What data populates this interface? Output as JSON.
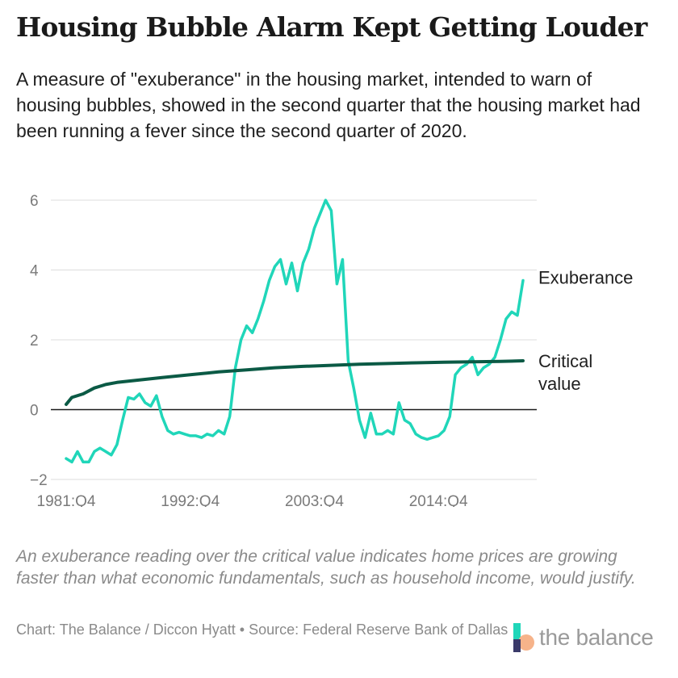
{
  "header": {
    "title": "Housing Bubble Alarm Kept Getting Louder",
    "subtitle": "A measure of \"exuberance\" in the housing market, intended to warn of housing bubbles, showed in the second quarter that the housing market had been running a fever since the second quarter of 2020."
  },
  "footer": {
    "note": "An exuberance reading over the critical value indicates home prices are growing faster than what economic fundamentals, such as household income, would justify.",
    "credit": "Chart: The Balance / Diccon Hyatt • Source: Federal Reserve Bank of Dallas",
    "logo_text": "the balance"
  },
  "colors": {
    "exuberance": "#20d6b9",
    "critical": "#0b5a45",
    "grid": "#dcdcdc",
    "zero_line": "#1a1a1a"
  },
  "chart_data": {
    "type": "line",
    "title": "Housing Bubble Alarm Kept Getting Louder",
    "xlabel": "",
    "ylabel": "",
    "ylim": [
      -2,
      6
    ],
    "y_ticks": [
      -2,
      0,
      2,
      4,
      6
    ],
    "y_tick_labels": [
      "−2",
      "0",
      "2",
      "4",
      "6"
    ],
    "x_ticks": [
      "1981:Q4",
      "1992:Q4",
      "2003:Q4",
      "2014:Q4"
    ],
    "xlim": [
      "1981:Q4",
      "2022:Q2"
    ],
    "grid": true,
    "legend": "direct labels at right end of lines",
    "series": [
      {
        "name": "Exuberance",
        "x": [
          "1981:Q4",
          "1982:Q2",
          "1982:Q4",
          "1983:Q2",
          "1983:Q4",
          "1984:Q2",
          "1984:Q4",
          "1985:Q2",
          "1985:Q4",
          "1986:Q2",
          "1986:Q4",
          "1987:Q2",
          "1987:Q4",
          "1988:Q2",
          "1988:Q4",
          "1989:Q2",
          "1989:Q4",
          "1990:Q2",
          "1990:Q4",
          "1991:Q2",
          "1991:Q4",
          "1992:Q2",
          "1992:Q4",
          "1993:Q2",
          "1993:Q4",
          "1994:Q2",
          "1994:Q4",
          "1995:Q2",
          "1995:Q4",
          "1996:Q2",
          "1996:Q4",
          "1997:Q2",
          "1997:Q4",
          "1998:Q2",
          "1998:Q4",
          "1999:Q2",
          "1999:Q4",
          "2000:Q2",
          "2000:Q4",
          "2001:Q2",
          "2001:Q4",
          "2002:Q2",
          "2002:Q4",
          "2003:Q2",
          "2003:Q4",
          "2004:Q2",
          "2004:Q4",
          "2005:Q2",
          "2005:Q4",
          "2006:Q2",
          "2006:Q4",
          "2007:Q2",
          "2007:Q4",
          "2008:Q2",
          "2008:Q4",
          "2009:Q2",
          "2009:Q4",
          "2010:Q2",
          "2010:Q4",
          "2011:Q2",
          "2011:Q4",
          "2012:Q2",
          "2012:Q4",
          "2013:Q2",
          "2013:Q4",
          "2014:Q2",
          "2014:Q4",
          "2015:Q2",
          "2015:Q4",
          "2016:Q2",
          "2016:Q4",
          "2017:Q2",
          "2017:Q4",
          "2018:Q2",
          "2018:Q4",
          "2019:Q2",
          "2019:Q4",
          "2020:Q2",
          "2020:Q4",
          "2021:Q2",
          "2021:Q4",
          "2022:Q2"
        ],
        "values": [
          -1.4,
          -1.5,
          -1.2,
          -1.5,
          -1.5,
          -1.2,
          -1.1,
          -1.2,
          -1.3,
          -1.0,
          -0.3,
          0.35,
          0.3,
          0.45,
          0.2,
          0.1,
          0.4,
          -0.2,
          -0.6,
          -0.7,
          -0.65,
          -0.7,
          -0.75,
          -0.75,
          -0.8,
          -0.7,
          -0.75,
          -0.6,
          -0.7,
          -0.2,
          1.2,
          2.0,
          2.4,
          2.2,
          2.6,
          3.1,
          3.7,
          4.1,
          4.3,
          3.6,
          4.2,
          3.4,
          4.2,
          4.6,
          5.2,
          5.6,
          6.0,
          5.7,
          3.6,
          4.3,
          1.4,
          0.6,
          -0.3,
          -0.8,
          -0.1,
          -0.7,
          -0.7,
          -0.6,
          -0.7,
          0.2,
          -0.3,
          -0.4,
          -0.7,
          -0.8,
          -0.85,
          -0.8,
          -0.75,
          -0.6,
          -0.2,
          1.0,
          1.2,
          1.3,
          1.5,
          1.0,
          1.2,
          1.3,
          1.5,
          2.0,
          2.6,
          2.8,
          2.7,
          3.7
        ]
      },
      {
        "name": "Critical value",
        "x": [
          "1981:Q4",
          "1982:Q2",
          "1983:Q2",
          "1984:Q2",
          "1985:Q2",
          "1986:Q2",
          "1988:Q2",
          "1990:Q2",
          "1992:Q4",
          "1995:Q2",
          "1997:Q4",
          "2000:Q2",
          "2002:Q4",
          "2005:Q2",
          "2007:Q4",
          "2010:Q2",
          "2012:Q4",
          "2015:Q2",
          "2017:Q4",
          "2020:Q2",
          "2022:Q2"
        ],
        "values": [
          0.15,
          0.35,
          0.45,
          0.62,
          0.72,
          0.78,
          0.85,
          0.92,
          1.0,
          1.08,
          1.14,
          1.2,
          1.24,
          1.27,
          1.3,
          1.32,
          1.34,
          1.36,
          1.37,
          1.38,
          1.4
        ]
      }
    ]
  }
}
